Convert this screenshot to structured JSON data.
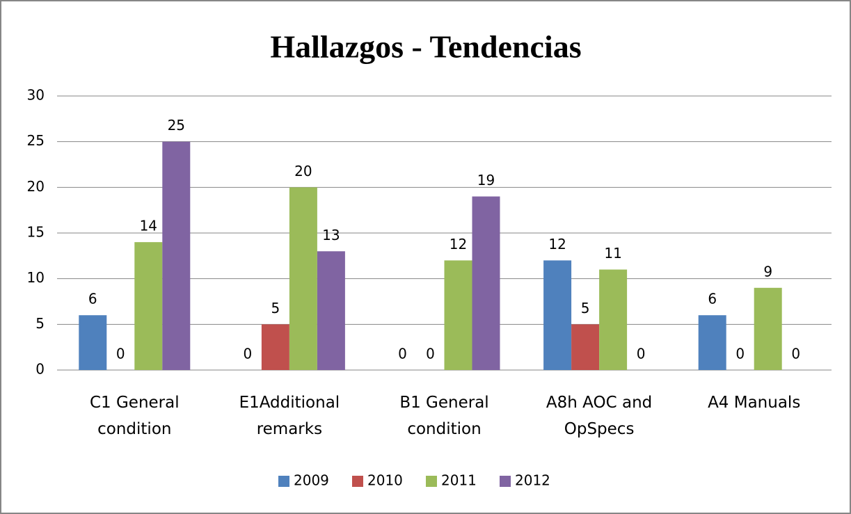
{
  "chart_data": {
    "type": "bar",
    "title": "Hallazgos - Tendencias",
    "categories": [
      "C1 General condition",
      "E1Additional remarks",
      "B1 General condition",
      "A8h AOC and OpSpecs",
      "A4 Manuals"
    ],
    "series": [
      {
        "name": "2009",
        "color": "#4f81bd",
        "values": [
          6,
          0,
          0,
          12,
          6
        ]
      },
      {
        "name": "2010",
        "color": "#c0504d",
        "values": [
          0,
          5,
          0,
          5,
          0
        ]
      },
      {
        "name": "2011",
        "color": "#9bbb59",
        "values": [
          14,
          20,
          12,
          11,
          9
        ]
      },
      {
        "name": "2012",
        "color": "#8064a2",
        "values": [
          25,
          13,
          19,
          0,
          0
        ]
      }
    ],
    "ylim": [
      0,
      30
    ],
    "yticks": [
      0,
      5,
      10,
      15,
      20,
      25,
      30
    ],
    "grid": true,
    "legend": "bottom"
  }
}
